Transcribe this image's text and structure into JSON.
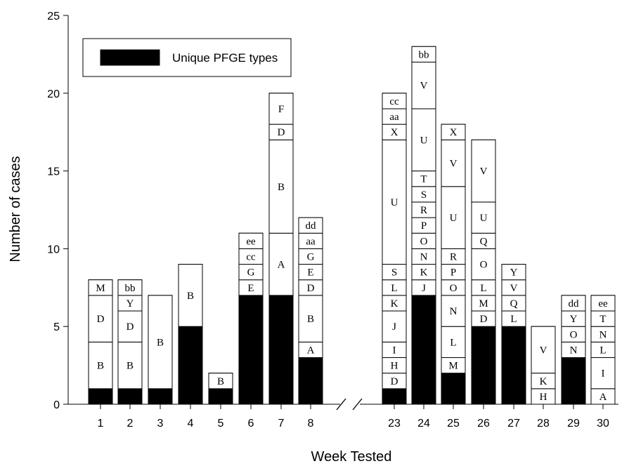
{
  "chart_data": {
    "type": "bar",
    "stacked": true,
    "xlabel": "Week Tested",
    "ylabel": "Number of cases",
    "ylim": [
      0,
      25
    ],
    "yticks": [
      0,
      5,
      10,
      15,
      20,
      25
    ],
    "legend": {
      "label": "Unique PFGE types",
      "position": "top-left"
    },
    "axis_break": "between week 8 and week 23",
    "colors": {
      "unique": "#000000",
      "shared": "#ffffff",
      "outline": "#000000"
    },
    "categories": [
      "1",
      "2",
      "3",
      "4",
      "5",
      "6",
      "7",
      "8",
      "23",
      "24",
      "25",
      "26",
      "27",
      "28",
      "29",
      "30"
    ],
    "unique_counts": [
      1,
      1,
      1,
      5,
      1,
      7,
      7,
      3,
      1,
      7,
      2,
      5,
      5,
      0,
      3,
      0
    ],
    "bars": [
      {
        "week": "1",
        "total": 8,
        "segments": [
          {
            "label": "B",
            "count": 3
          },
          {
            "label": "D",
            "count": 3
          },
          {
            "label": "M",
            "count": 1
          }
        ]
      },
      {
        "week": "2",
        "total": 8,
        "segments": [
          {
            "label": "B",
            "count": 3
          },
          {
            "label": "D",
            "count": 2
          },
          {
            "label": "Y",
            "count": 1
          },
          {
            "label": "bb",
            "count": 1
          }
        ]
      },
      {
        "week": "3",
        "total": 7,
        "segments": [
          {
            "label": "B",
            "count": 6
          }
        ]
      },
      {
        "week": "4",
        "total": 9,
        "segments": [
          {
            "label": "B",
            "count": 4
          }
        ]
      },
      {
        "week": "5",
        "total": 2,
        "segments": [
          {
            "label": "B",
            "count": 1
          }
        ]
      },
      {
        "week": "6",
        "total": 11,
        "segments": [
          {
            "label": "E",
            "count": 1
          },
          {
            "label": "G",
            "count": 1
          },
          {
            "label": "cc",
            "count": 1
          },
          {
            "label": "ee",
            "count": 1
          }
        ]
      },
      {
        "week": "7",
        "total": 20,
        "segments": [
          {
            "label": "A",
            "count": 4
          },
          {
            "label": "B",
            "count": 6
          },
          {
            "label": "D",
            "count": 1
          },
          {
            "label": "F",
            "count": 2
          }
        ]
      },
      {
        "week": "8",
        "total": 12,
        "segments": [
          {
            "label": "A",
            "count": 1
          },
          {
            "label": "B",
            "count": 3
          },
          {
            "label": "D",
            "count": 1
          },
          {
            "label": "E",
            "count": 1
          },
          {
            "label": "G",
            "count": 1
          },
          {
            "label": "aa",
            "count": 1
          },
          {
            "label": "dd",
            "count": 1
          }
        ]
      },
      {
        "week": "23",
        "total": 20,
        "segments": [
          {
            "label": "D",
            "count": 1
          },
          {
            "label": "H",
            "count": 1
          },
          {
            "label": "I",
            "count": 1
          },
          {
            "label": "J",
            "count": 2
          },
          {
            "label": "K",
            "count": 1
          },
          {
            "label": "L",
            "count": 1
          },
          {
            "label": "S",
            "count": 1
          },
          {
            "label": "U",
            "count": 8
          },
          {
            "label": "X",
            "count": 1
          },
          {
            "label": "aa",
            "count": 1
          },
          {
            "label": "cc",
            "count": 1
          }
        ]
      },
      {
        "week": "24",
        "total": 23,
        "segments": [
          {
            "label": "J",
            "count": 1
          },
          {
            "label": "K",
            "count": 1
          },
          {
            "label": "N",
            "count": 1
          },
          {
            "label": "O",
            "count": 1
          },
          {
            "label": "P",
            "count": 1
          },
          {
            "label": "R",
            "count": 1
          },
          {
            "label": "S",
            "count": 1
          },
          {
            "label": "T",
            "count": 1
          },
          {
            "label": "U",
            "count": 4
          },
          {
            "label": "V",
            "count": 3
          },
          {
            "label": "bb",
            "count": 1
          }
        ]
      },
      {
        "week": "25",
        "total": 18,
        "segments": [
          {
            "label": "M",
            "count": 1
          },
          {
            "label": "L",
            "count": 2
          },
          {
            "label": "N",
            "count": 2
          },
          {
            "label": "O",
            "count": 1
          },
          {
            "label": "P",
            "count": 1
          },
          {
            "label": "R",
            "count": 1
          },
          {
            "label": "U",
            "count": 4
          },
          {
            "label": "V",
            "count": 3
          },
          {
            "label": "X",
            "count": 1
          }
        ]
      },
      {
        "week": "26",
        "total": 17,
        "segments": [
          {
            "label": "D",
            "count": 1
          },
          {
            "label": "M",
            "count": 1
          },
          {
            "label": "L",
            "count": 1
          },
          {
            "label": "O",
            "count": 2
          },
          {
            "label": "Q",
            "count": 1
          },
          {
            "label": "U",
            "count": 2
          },
          {
            "label": "V",
            "count": 4
          }
        ]
      },
      {
        "week": "27",
        "total": 9,
        "segments": [
          {
            "label": "L",
            "count": 1
          },
          {
            "label": "Q",
            "count": 1
          },
          {
            "label": "V",
            "count": 1
          },
          {
            "label": "Y",
            "count": 1
          }
        ]
      },
      {
        "week": "28",
        "total": 5,
        "segments": [
          {
            "label": "H",
            "count": 1
          },
          {
            "label": "K",
            "count": 1
          },
          {
            "label": "V",
            "count": 3
          }
        ]
      },
      {
        "week": "29",
        "total": 7,
        "segments": [
          {
            "label": "N",
            "count": 1
          },
          {
            "label": "O",
            "count": 1
          },
          {
            "label": "Y",
            "count": 1
          },
          {
            "label": "dd",
            "count": 1
          }
        ]
      },
      {
        "week": "30",
        "total": 7,
        "segments": [
          {
            "label": "A",
            "count": 1
          },
          {
            "label": "I",
            "count": 2
          },
          {
            "label": "L",
            "count": 1
          },
          {
            "label": "N",
            "count": 1
          },
          {
            "label": "T",
            "count": 1
          },
          {
            "label": "ee",
            "count": 1
          }
        ]
      }
    ]
  }
}
